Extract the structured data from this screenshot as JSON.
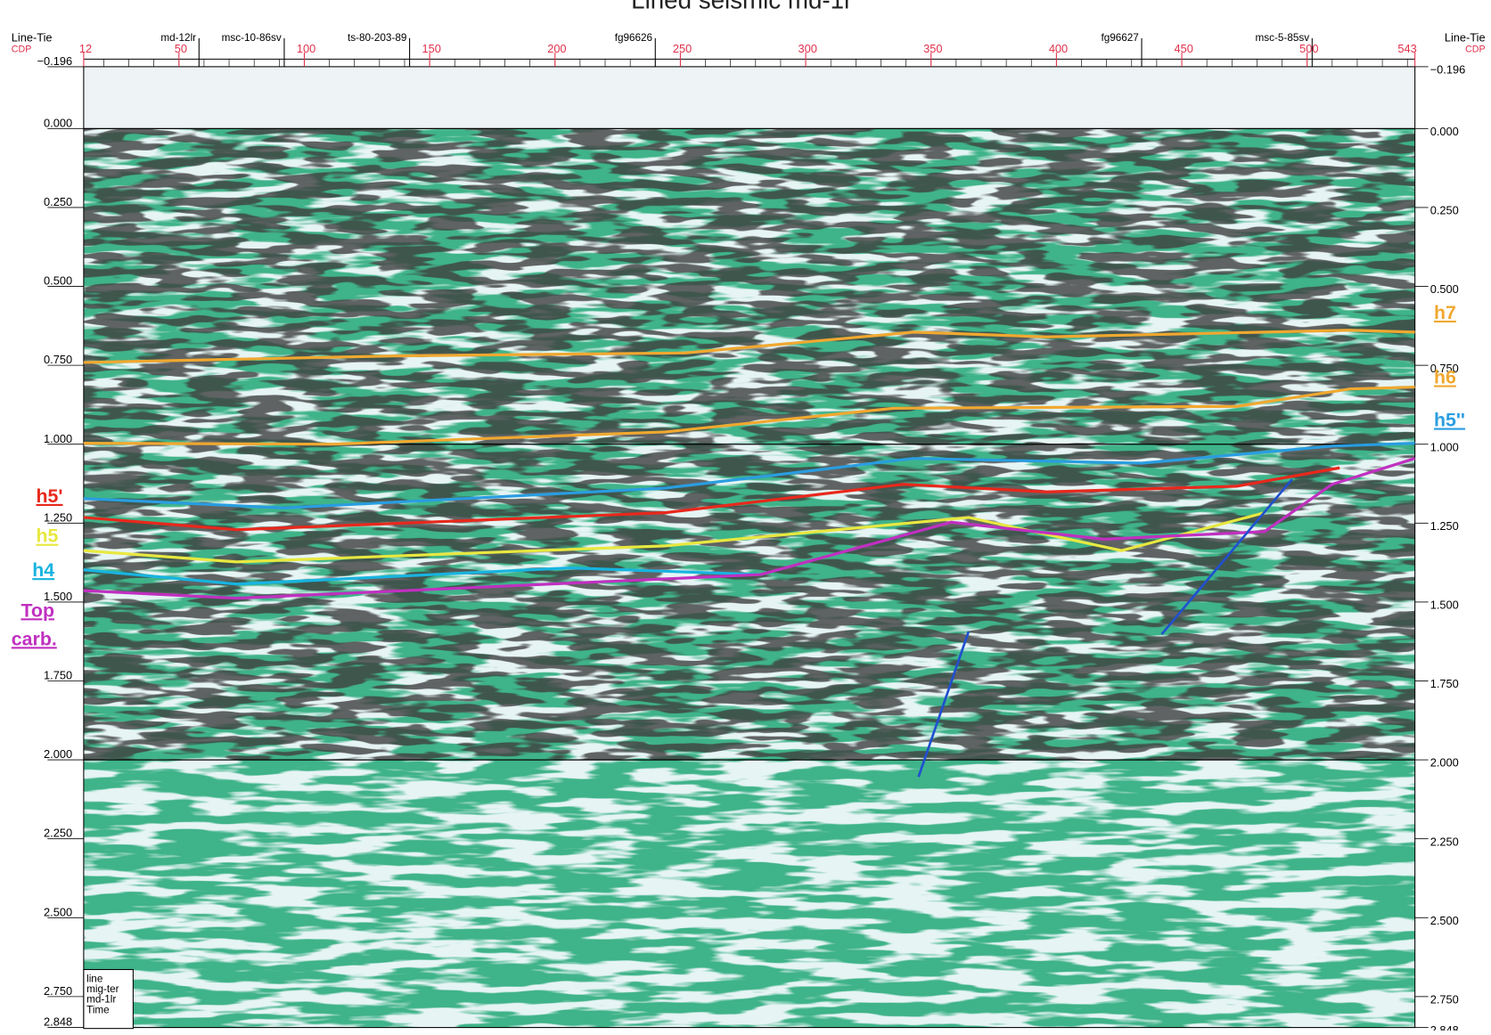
{
  "title": "Lined seismic md-1r",
  "header": {
    "left": [
      "Line-Tie",
      "CDP"
    ],
    "right": [
      "Line-Tie",
      "CDP"
    ]
  },
  "cdp_axis": {
    "lim": [
      12,
      543
    ],
    "ticks": [
      12,
      50,
      100,
      150,
      200,
      250,
      300,
      350,
      400,
      450,
      500,
      543
    ]
  },
  "time_axis": {
    "lim": [
      -0.196,
      2.848
    ],
    "ticks": [
      {
        "value": -0.196,
        "label": "−0.196"
      },
      {
        "value": 0,
        "label": "0.000"
      },
      {
        "value": 0.25,
        "label": "0.250"
      },
      {
        "value": 0.5,
        "label": "0.500"
      },
      {
        "value": 0.75,
        "label": "0.750"
      },
      {
        "value": 1,
        "label": "1.000"
      },
      {
        "value": 1.25,
        "label": "1.250"
      },
      {
        "value": 1.5,
        "label": "1.500"
      },
      {
        "value": 1.75,
        "label": "1.750"
      },
      {
        "value": 2,
        "label": "2.000"
      },
      {
        "value": 2.25,
        "label": "2.250"
      },
      {
        "value": 2.5,
        "label": "2.500"
      },
      {
        "value": 2.75,
        "label": "2.750"
      },
      2.848
    ]
  },
  "wells": [
    {
      "name": "md-12lr",
      "cdp": 58
    },
    {
      "name": "msc-10-86sv",
      "cdp": 92
    },
    {
      "name": "ts-80-203-89",
      "cdp": 142
    },
    {
      "name": "fg96626",
      "cdp": 240
    },
    {
      "name": "fg96627",
      "cdp": 434
    },
    {
      "name": "msc-5-85sv",
      "cdp": 502
    }
  ],
  "horizons": [
    {
      "name": "h7",
      "color": "#f0a830",
      "cdp": [
        12,
        138,
        252,
        343,
        396,
        517,
        543
      ],
      "time": [
        0.741,
        0.72,
        0.711,
        0.645,
        0.66,
        0.639,
        0.645
      ]
    },
    {
      "name": "h6",
      "color": "#f0a830",
      "cdp": [
        12,
        111,
        244,
        335,
        472,
        517,
        543
      ],
      "time": [
        0.997,
        1.0,
        0.961,
        0.886,
        0.88,
        0.825,
        0.819
      ]
    },
    {
      "name": "h5''",
      "color": "#2a9de0",
      "cdp": [
        12,
        92,
        244,
        343,
        434,
        510,
        543
      ],
      "time": [
        1.172,
        1.202,
        1.139,
        1.045,
        1.06,
        1.006,
        0.997
      ]
    },
    {
      "name": "h5'",
      "color": "#e8281c",
      "cdp": [
        12,
        73,
        244,
        339,
        396,
        472,
        513
      ],
      "time": [
        1.232,
        1.271,
        1.217,
        1.127,
        1.151,
        1.133,
        1.075
      ]
    },
    {
      "name": "h5",
      "color": "#e8e840",
      "cdp": [
        12,
        73,
        244,
        365,
        426,
        483
      ],
      "time": [
        1.337,
        1.373,
        1.322,
        1.232,
        1.337,
        1.217
      ]
    },
    {
      "name": "h4",
      "color": "#18b4e0",
      "cdp": [
        12,
        73,
        206,
        282
      ],
      "time": [
        1.398,
        1.443,
        1.392,
        1.413
      ]
    },
    {
      "name": "Top carb.",
      "color": "#c030c0",
      "cdp": [
        12,
        73,
        282,
        358,
        419,
        483,
        510,
        543
      ],
      "time": [
        1.464,
        1.488,
        1.413,
        1.247,
        1.301,
        1.277,
        1.127,
        1.045
      ]
    }
  ],
  "faults": [
    {
      "color": "#2050d0",
      "cdp": [
        365,
        345
      ],
      "time": [
        1.593,
        2.054
      ]
    },
    {
      "color": "#2050d0",
      "cdp": [
        494,
        442
      ],
      "time": [
        1.111,
        1.602
      ]
    }
  ],
  "legend_box": [
    "line",
    "mig-ter",
    "md-1lr",
    "Time"
  ]
}
